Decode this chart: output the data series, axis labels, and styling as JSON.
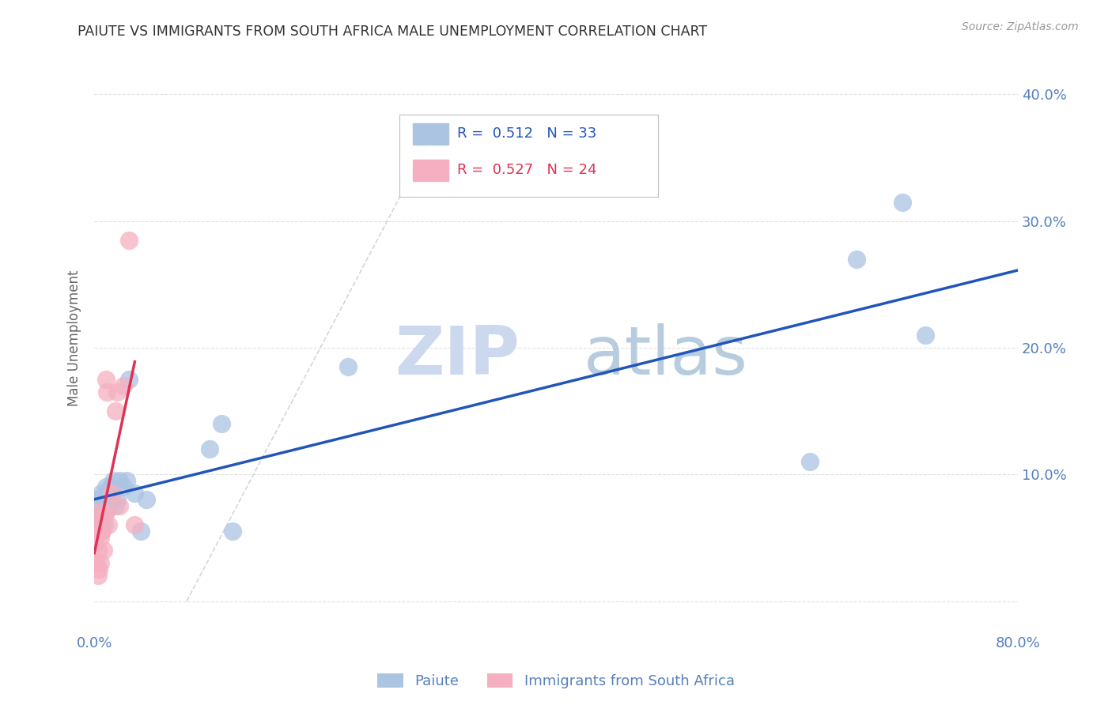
{
  "title": "PAIUTE VS IMMIGRANTS FROM SOUTH AFRICA MALE UNEMPLOYMENT CORRELATION CHART",
  "source": "Source: ZipAtlas.com",
  "ylabel": "Male Unemployment",
  "xlim": [
    0,
    0.8
  ],
  "ylim": [
    -0.025,
    0.44
  ],
  "paiute_color": "#aac4e2",
  "immigrant_color": "#f5afc0",
  "paiute_edge_color": "#8ab0d8",
  "immigrant_edge_color": "#e090a8",
  "paiute_line_color": "#2255bb",
  "immigrant_line_color": "#dd3355",
  "diagonal_color": "#cccccc",
  "paiute_x": [
    0.001,
    0.002,
    0.003,
    0.004,
    0.005,
    0.006,
    0.007,
    0.008,
    0.009,
    0.01,
    0.011,
    0.012,
    0.013,
    0.014,
    0.015,
    0.016,
    0.018,
    0.02,
    0.022,
    0.025,
    0.028,
    0.03,
    0.035,
    0.04,
    0.045,
    0.1,
    0.11,
    0.12,
    0.22,
    0.62,
    0.66,
    0.7,
    0.72
  ],
  "paiute_y": [
    0.08,
    0.075,
    0.07,
    0.065,
    0.06,
    0.085,
    0.07,
    0.075,
    0.06,
    0.09,
    0.08,
    0.085,
    0.075,
    0.09,
    0.085,
    0.095,
    0.075,
    0.08,
    0.095,
    0.09,
    0.095,
    0.175,
    0.085,
    0.055,
    0.08,
    0.12,
    0.14,
    0.055,
    0.185,
    0.11,
    0.27,
    0.315,
    0.21
  ],
  "immigrant_x": [
    0.0,
    0.001,
    0.002,
    0.003,
    0.003,
    0.004,
    0.004,
    0.005,
    0.005,
    0.006,
    0.007,
    0.008,
    0.009,
    0.01,
    0.01,
    0.011,
    0.012,
    0.015,
    0.018,
    0.02,
    0.022,
    0.025,
    0.03,
    0.035
  ],
  "immigrant_y": [
    0.045,
    0.065,
    0.03,
    0.02,
    0.04,
    0.025,
    0.07,
    0.05,
    0.03,
    0.055,
    0.055,
    0.04,
    0.068,
    0.175,
    0.07,
    0.165,
    0.06,
    0.085,
    0.15,
    0.165,
    0.075,
    0.17,
    0.285,
    0.06
  ],
  "background_color": "#ffffff",
  "grid_color": "#e0e0e0",
  "title_color": "#333333",
  "tick_color": "#5580bb",
  "legend_label1": "Paiute",
  "legend_label2": "Immigrants from South Africa",
  "r1": "0.512",
  "n1": "33",
  "r2": "0.527",
  "n2": "24"
}
